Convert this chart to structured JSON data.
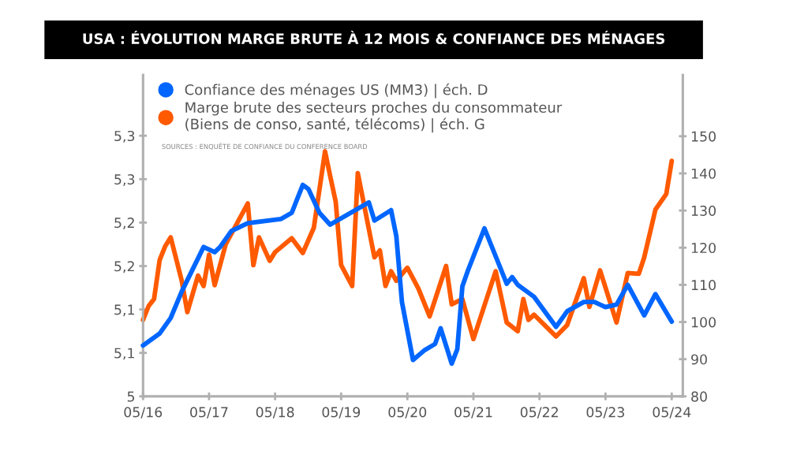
{
  "chart_data": {
    "type": "line",
    "title": "USA : ÉVOLUTION MARGE BRUTE À 12 MOIS & CONFIANCE DES MÉNAGES",
    "annotations": [
      "SOURCES : ENQUÊTE DE CONFIANCE DU CONFERENCE BOARD"
    ],
    "series": [
      {
        "name": "Confiance des ménages US (MM3) | éch. D",
        "color": "#0066ff",
        "axis": "y2",
        "x": [
          "2016-05",
          "2016-08",
          "2016-10",
          "2016-12",
          "2017-04",
          "2017-06",
          "2017-07",
          "2017-09",
          "2017-12",
          "2018-06",
          "2018-08",
          "2018-10",
          "2018-11",
          "2019-01",
          "2019-03",
          "2019-10",
          "2019-11",
          "2020-02",
          "2020-03",
          "2020-04",
          "2020-06",
          "2020-08",
          "2020-10",
          "2020-11",
          "2021-01",
          "2021-02",
          "2021-03",
          "2021-04",
          "2021-07",
          "2021-11",
          "2021-12",
          "2022-01",
          "2022-04",
          "2022-08",
          "2022-10",
          "2023-01",
          "2023-03",
          "2023-05",
          "2023-07",
          "2023-09",
          "2023-12",
          "2024-02",
          "2024-05"
        ],
        "values": [
          93.7,
          96.9,
          101.1,
          108.2,
          120.2,
          118.8,
          120.2,
          124.5,
          126.6,
          127.7,
          129.4,
          136.9,
          135.8,
          129.4,
          126.2,
          132.2,
          127.3,
          130.1,
          123.1,
          105.4,
          89.8,
          92.3,
          94.1,
          98.3,
          88.8,
          92.7,
          109.6,
          113.9,
          125.2,
          110.3,
          112.1,
          110.0,
          106.8,
          98.7,
          102.9,
          105.4,
          105.4,
          104.0,
          104.7,
          110.0,
          101.8,
          107.5,
          100.1
        ]
      },
      {
        "name": "Marge brute des secteurs proches du consommateur\n(Biens de conso, santé, télécoms) | éch. G",
        "color": "#ff5a00",
        "axis": "y",
        "x": [
          "2016-05",
          "2016-06",
          "2016-07",
          "2016-08",
          "2016-09",
          "2016-10",
          "2016-12",
          "2017-01",
          "2017-03",
          "2017-04",
          "2017-05",
          "2017-06",
          "2017-08",
          "2017-12",
          "2018-01",
          "2018-02",
          "2018-04",
          "2018-05",
          "2018-08",
          "2018-10",
          "2018-12",
          "2019-02",
          "2019-03",
          "2019-04",
          "2019-05",
          "2019-07",
          "2019-08",
          "2019-11",
          "2019-12",
          "2020-01",
          "2020-02",
          "2020-03",
          "2020-05",
          "2020-07",
          "2020-09",
          "2020-12",
          "2021-01",
          "2021-03",
          "2021-05",
          "2021-09",
          "2021-11",
          "2022-01",
          "2022-02",
          "2022-03",
          "2022-04",
          "2022-08",
          "2022-10",
          "2023-01",
          "2023-02",
          "2023-04",
          "2023-07",
          "2023-09",
          "2023-11",
          "2023-12",
          "2024-02",
          "2024-04",
          "2024-05"
        ],
        "values": [
          5.088,
          5.104,
          5.112,
          5.157,
          5.173,
          5.183,
          5.133,
          5.097,
          5.139,
          5.127,
          5.163,
          5.128,
          5.175,
          5.222,
          5.151,
          5.183,
          5.156,
          5.166,
          5.182,
          5.165,
          5.194,
          5.282,
          5.254,
          5.224,
          5.151,
          5.127,
          5.257,
          5.16,
          5.168,
          5.127,
          5.144,
          5.133,
          5.148,
          5.124,
          5.092,
          5.15,
          5.106,
          5.112,
          5.066,
          5.144,
          5.085,
          5.075,
          5.112,
          5.088,
          5.094,
          5.069,
          5.082,
          5.136,
          5.103,
          5.145,
          5.085,
          5.142,
          5.141,
          5.16,
          5.215,
          5.233,
          5.271
        ]
      }
    ],
    "xlim": [
      "2016-05",
      "2024-07"
    ],
    "xticks": [
      {
        "value": "2016-05",
        "label": "05/16"
      },
      {
        "value": "2017-05",
        "label": "05/17"
      },
      {
        "value": "2018-05",
        "label": "05/18"
      },
      {
        "value": "2019-05",
        "label": "05/19"
      },
      {
        "value": "2020-05",
        "label": "05/20"
      },
      {
        "value": "2021-05",
        "label": "05/21"
      },
      {
        "value": "2022-05",
        "label": "05/22"
      },
      {
        "value": "2023-05",
        "label": "05/23"
      },
      {
        "value": "2024-05",
        "label": "05/24"
      }
    ],
    "ylim": [
      5,
      5.37
    ],
    "yticks": [
      {
        "value": 5,
        "label": "5"
      },
      {
        "value": 5.05,
        "label": "5,1"
      },
      {
        "value": 5.1,
        "label": "5,1"
      },
      {
        "value": 5.15,
        "label": "5,2"
      },
      {
        "value": 5.2,
        "label": "5,2"
      },
      {
        "value": 5.25,
        "label": "5,3"
      },
      {
        "value": 5.3,
        "label": "5,3"
      }
    ],
    "y2lim": [
      80,
      166.5
    ],
    "y2ticks": [
      80,
      90,
      100,
      110,
      120,
      130,
      140,
      150
    ],
    "legend": "top left",
    "line_style": "solid"
  }
}
